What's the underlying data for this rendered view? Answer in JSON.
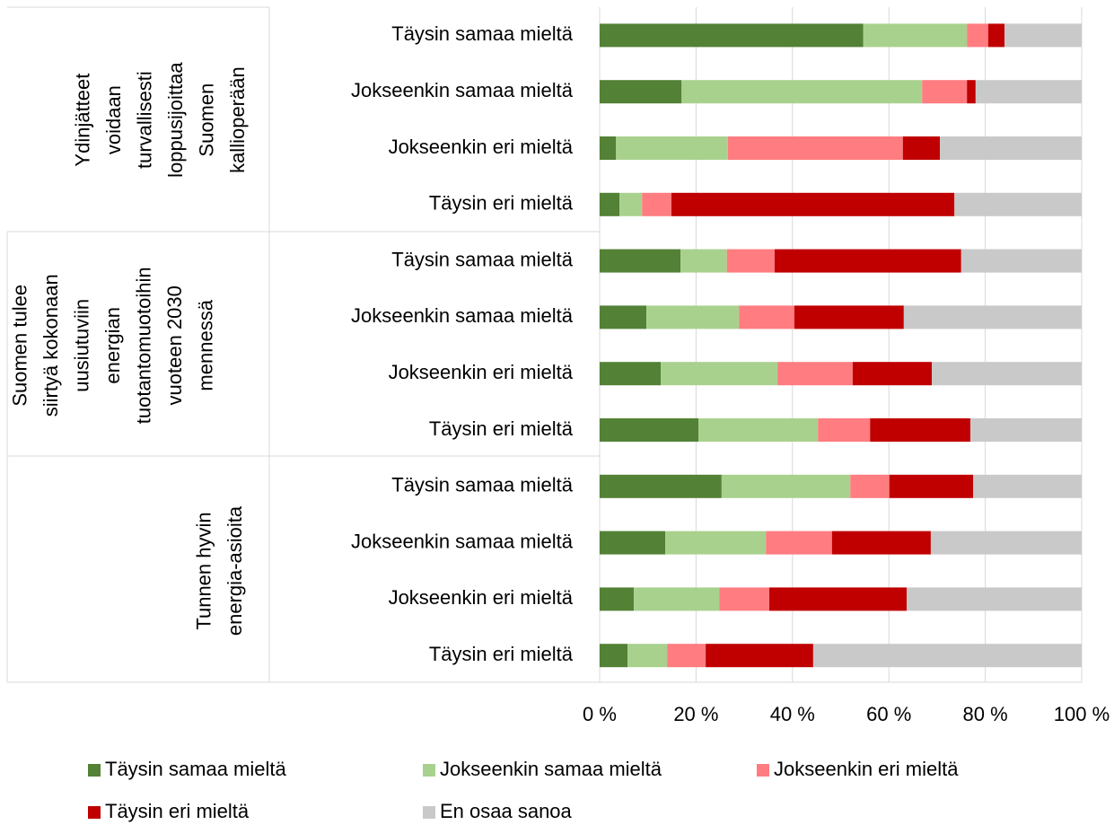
{
  "chart_data": {
    "type": "stacked_bar_100",
    "groups": [
      {
        "label_lines": [
          "Ydinjätteet",
          "voidaan",
          "turvallisesti",
          "loppusijoittaa",
          "Suomen",
          "kallioperään"
        ],
        "categories": [
          "Täysin samaa mieltä",
          "Jokseenkin samaa mieltä",
          "Jokseenkin eri mieltä",
          "Täysin eri mieltä"
        ]
      },
      {
        "label_lines": [
          "Suomen tulee",
          "siirtyä kokonaan",
          "uusiutuviin",
          "energian",
          "tuotantomuotoihin",
          "vuoteen 2030",
          "mennessä"
        ],
        "categories": [
          "Täysin samaa mieltä",
          "Jokseenkin samaa mieltä",
          "Jokseenkin eri mieltä",
          "Täysin eri mieltä"
        ]
      },
      {
        "label_lines": [
          "Tunnen hyvin",
          "energia-asioita"
        ],
        "categories": [
          "Täysin samaa mieltä",
          "Jokseenkin samaa mieltä",
          "Jokseenkin eri mieltä",
          "Täysin eri mieltä"
        ]
      }
    ],
    "series": [
      {
        "name": "Täysin samaa mieltä",
        "color": "#538135",
        "values": [
          54.7,
          17,
          3.4,
          4.1,
          16.8,
          9.7,
          12.7,
          20.5,
          25.3,
          13.6,
          7.1,
          5.8
        ]
      },
      {
        "name": "Jokseenkin samaa mieltä",
        "color": "#a9d18e",
        "values": [
          21.5,
          49.9,
          23.2,
          4.7,
          9.6,
          19.2,
          24.2,
          24.8,
          26.7,
          20.9,
          17.7,
          8.2
        ]
      },
      {
        "name": "Jokseenkin eri mieltä",
        "color": "#ff7c80",
        "values": [
          4.4,
          9.3,
          36.3,
          6.1,
          9.9,
          11.5,
          15.6,
          10.8,
          8.1,
          13.7,
          10.4,
          8
        ]
      },
      {
        "name": "Täysin eri mieltä",
        "color": "#c00000",
        "values": [
          3.4,
          1.8,
          7.7,
          58.7,
          38.7,
          22.7,
          16.4,
          20.8,
          17.4,
          20.5,
          28.5,
          22.3
        ]
      },
      {
        "name": "En osaa sanoa",
        "color": "#c9c9c9",
        "values": [
          16,
          22,
          29.4,
          26.4,
          25,
          36.9,
          31.1,
          23.1,
          22.5,
          31.3,
          36.3,
          55.7
        ]
      }
    ],
    "xlim": [
      0,
      100
    ],
    "xticks": [
      {
        "value": 0,
        "label": "0 %"
      },
      {
        "value": 20,
        "label": "20 %"
      },
      {
        "value": 40,
        "label": "40 %"
      },
      {
        "value": 60,
        "label": "60 %"
      },
      {
        "value": 80,
        "label": "80 %"
      },
      {
        "value": 100,
        "label": "100 %"
      }
    ],
    "grid": true
  }
}
